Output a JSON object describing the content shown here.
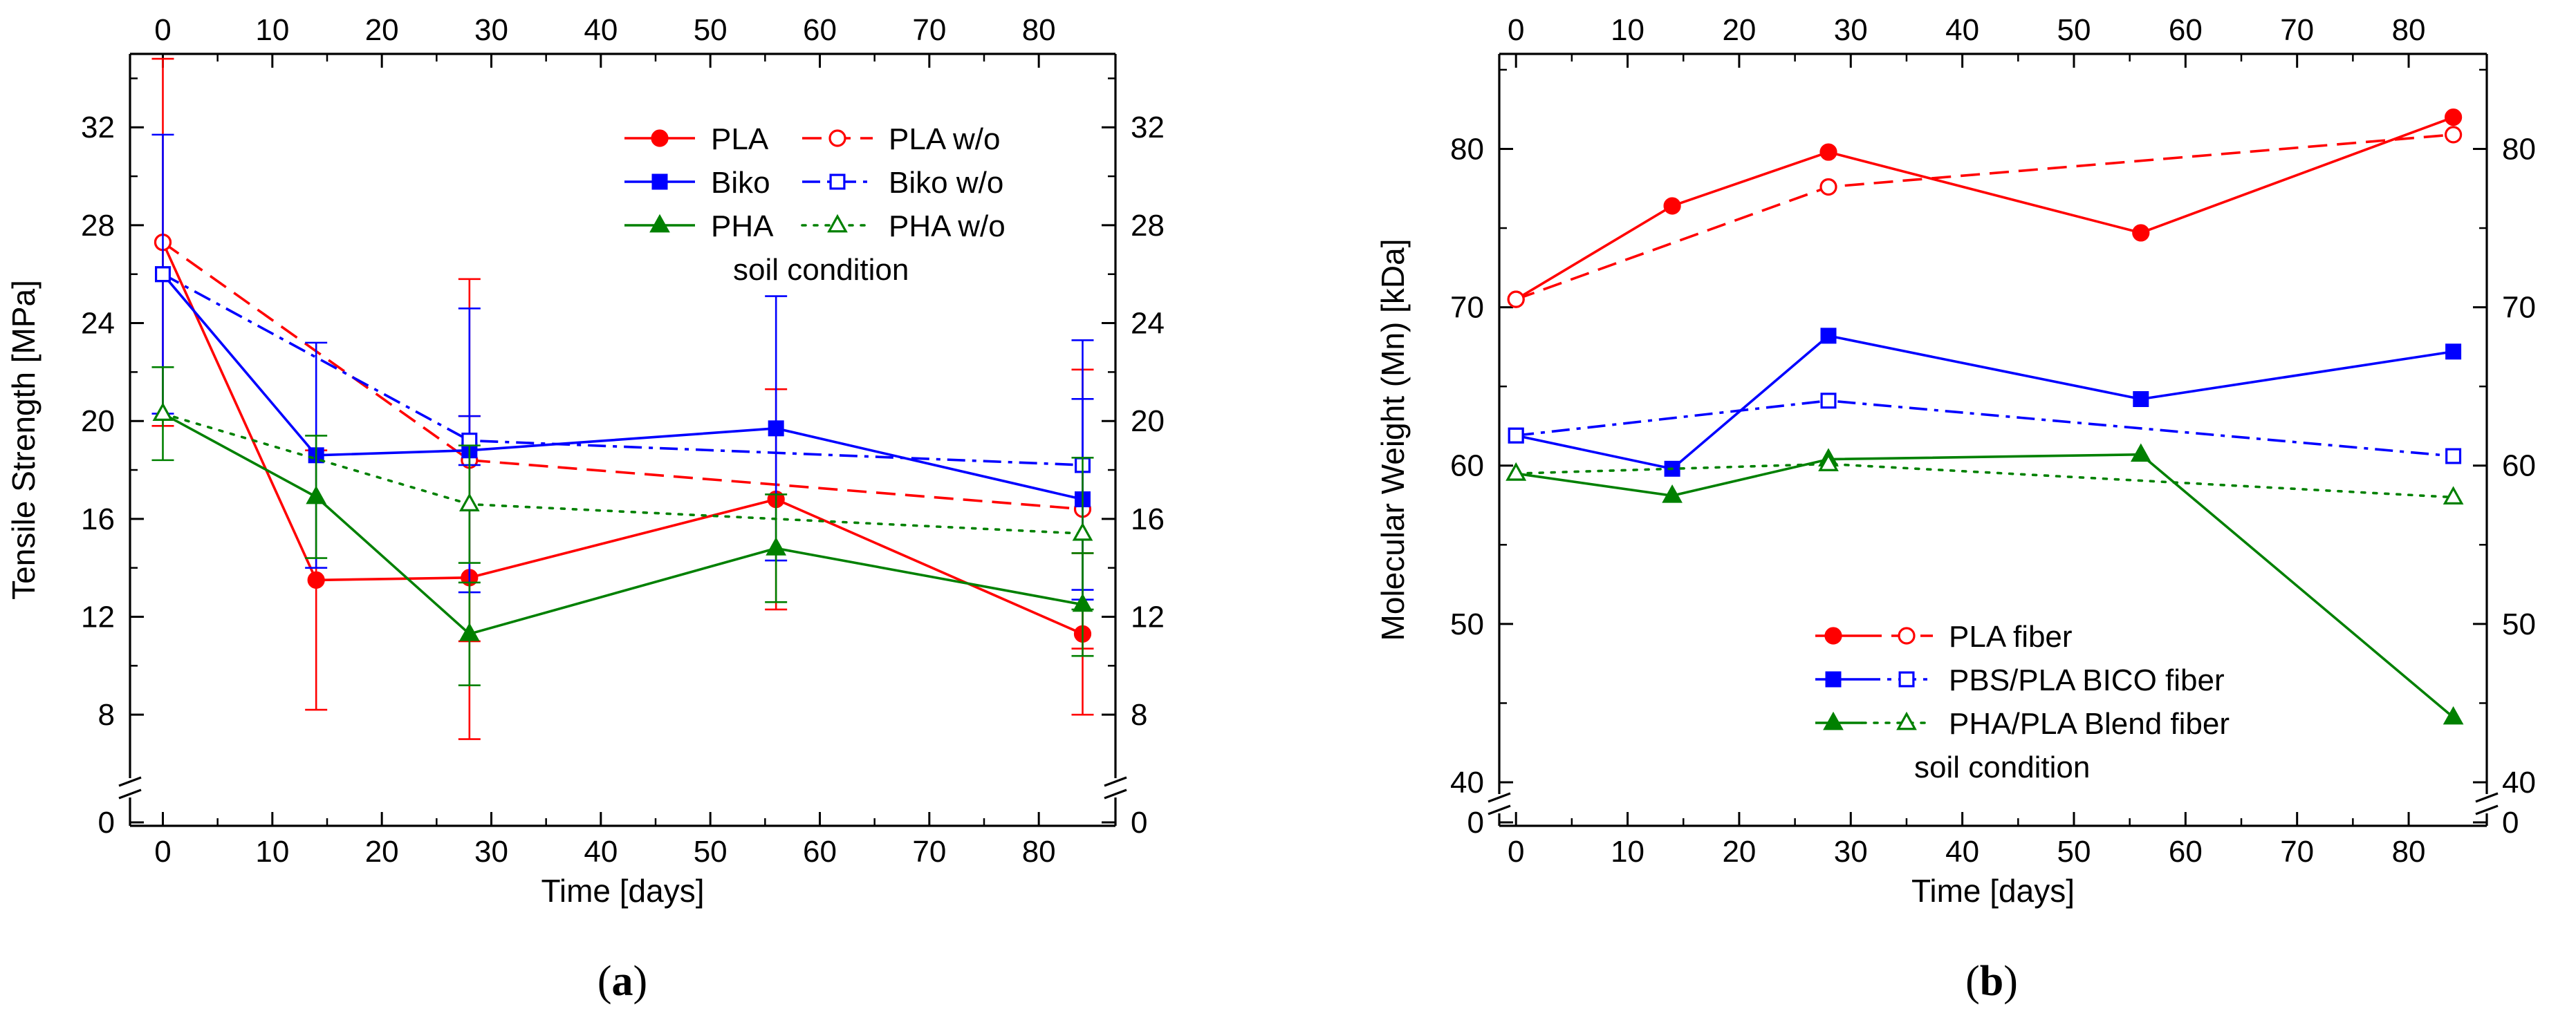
{
  "chart_data": [
    {
      "id": "a",
      "type": "line",
      "caption_letter": "a",
      "xlabel": "Time [days]",
      "ylabel": "Tensile Strength [MPa]",
      "xlim": [
        -3,
        87
      ],
      "x_ticks": [
        0,
        10,
        20,
        30,
        40,
        50,
        60,
        70,
        80
      ],
      "x_tick_labels": [
        "0",
        "10",
        "20",
        "30",
        "40",
        "50",
        "60",
        "70",
        "80"
      ],
      "ylim": [
        6,
        35
      ],
      "y_ticks": [
        8,
        12,
        16,
        20,
        24,
        28,
        32
      ],
      "y_tick_labels": [
        "8",
        "12",
        "16",
        "20",
        "24",
        "28",
        "32"
      ],
      "y_zero_label": "0",
      "legend_note": "soil condition",
      "legend_position": "top-right",
      "series": [
        {
          "name": "PLA",
          "color": "#ff0000",
          "dash": "solid",
          "marker": "circle",
          "filled": true,
          "x": [
            0,
            14,
            28,
            56,
            84
          ],
          "y": [
            27.3,
            13.5,
            13.6,
            16.8,
            11.3
          ],
          "err": [
            7.5,
            5.3,
            6.6,
            4.5,
            3.3
          ]
        },
        {
          "name": "PLA  w/o",
          "color": "#ff0000",
          "dash": "dash",
          "marker": "circle",
          "filled": false,
          "x": [
            0,
            28,
            84
          ],
          "y": [
            27.3,
            18.4,
            16.4
          ],
          "err": [
            0,
            7.4,
            5.7
          ]
        },
        {
          "name": "Biko",
          "color": "#0000ff",
          "dash": "solid",
          "marker": "square",
          "filled": true,
          "x": [
            0,
            14,
            28,
            56,
            84
          ],
          "y": [
            26.0,
            18.6,
            18.8,
            19.7,
            16.8
          ],
          "err": [
            5.7,
            4.6,
            5.8,
            5.4,
            4.1
          ]
        },
        {
          "name": "Biko  w/o",
          "color": "#0000ff",
          "dash": "dashdot",
          "marker": "square",
          "filled": false,
          "x": [
            0,
            28,
            84
          ],
          "y": [
            26.0,
            19.2,
            18.2
          ],
          "err": [
            0,
            1.0,
            5.1
          ]
        },
        {
          "name": "PHA",
          "color": "#008000",
          "dash": "solid",
          "marker": "triangle",
          "filled": true,
          "x": [
            0,
            14,
            28,
            56,
            84
          ],
          "y": [
            20.3,
            16.9,
            11.3,
            14.8,
            12.5
          ],
          "err": [
            1.9,
            2.5,
            2.1,
            2.2,
            2.1
          ]
        },
        {
          "name": "PHA  w/o",
          "color": "#008000",
          "dash": "dot",
          "marker": "triangle",
          "filled": false,
          "x": [
            0,
            28,
            84
          ],
          "y": [
            20.3,
            16.6,
            15.4
          ],
          "err": [
            0,
            2.4,
            3.1
          ]
        }
      ]
    },
    {
      "id": "b",
      "type": "line",
      "caption_letter": "b",
      "xlabel": "Time [days]",
      "ylabel": "Molecular Weight (Mn) [kDa]",
      "xlim": [
        -1.5,
        87
      ],
      "x_ticks": [
        0,
        10,
        20,
        30,
        40,
        50,
        60,
        70,
        80
      ],
      "x_tick_labels": [
        "0",
        "10",
        "20",
        "30",
        "40",
        "50",
        "60",
        "70",
        "80"
      ],
      "ylim": [
        40,
        86
      ],
      "y_ticks": [
        40,
        50,
        60,
        70,
        80
      ],
      "y_tick_labels": [
        "40",
        "50",
        "60",
        "70",
        "80"
      ],
      "y_zero_label": "0",
      "legend_note": "soil condition",
      "legend_position": "bottom-center",
      "legend": [
        {
          "label": "PLA fiber",
          "color": "#ff0000",
          "marker": "circle",
          "dash": "dash"
        },
        {
          "label": "PBS/PLA BICO fiber",
          "color": "#0000ff",
          "marker": "square",
          "dash": "dashdot"
        },
        {
          "label": "PHA/PLA Blend fiber",
          "color": "#008000",
          "marker": "triangle",
          "dash": "dot"
        }
      ],
      "series": [
        {
          "name": "PLA fiber (soil)",
          "color": "#ff0000",
          "dash": "solid",
          "marker": "circle",
          "filled": true,
          "x": [
            0,
            14,
            28,
            56,
            84
          ],
          "y": [
            70.5,
            76.4,
            79.8,
            74.7,
            82.0
          ]
        },
        {
          "name": "PLA fiber (w/o)",
          "color": "#ff0000",
          "dash": "dash",
          "marker": "circle",
          "filled": false,
          "x": [
            0,
            28,
            84
          ],
          "y": [
            70.5,
            77.6,
            80.9
          ]
        },
        {
          "name": "PBS/PLA BICO fiber (soil)",
          "color": "#0000ff",
          "dash": "solid",
          "marker": "square",
          "filled": true,
          "x": [
            0,
            14,
            28,
            56,
            84
          ],
          "y": [
            61.9,
            59.8,
            68.2,
            64.2,
            67.2
          ]
        },
        {
          "name": "PBS/PLA BICO fiber (w/o)",
          "color": "#0000ff",
          "dash": "dashdot",
          "marker": "square",
          "filled": false,
          "x": [
            0,
            28,
            84
          ],
          "y": [
            61.9,
            64.1,
            60.6
          ]
        },
        {
          "name": "PHA/PLA Blend fiber (soil)",
          "color": "#008000",
          "dash": "solid",
          "marker": "triangle",
          "filled": true,
          "x": [
            0,
            14,
            28,
            56,
            84
          ],
          "y": [
            59.5,
            58.1,
            60.4,
            60.7,
            44.1
          ]
        },
        {
          "name": "PHA/PLA Blend fiber (w/o)",
          "color": "#008000",
          "dash": "dot",
          "marker": "triangle",
          "filled": false,
          "x": [
            0,
            28,
            84
          ],
          "y": [
            59.5,
            60.1,
            58.0
          ]
        }
      ]
    }
  ]
}
